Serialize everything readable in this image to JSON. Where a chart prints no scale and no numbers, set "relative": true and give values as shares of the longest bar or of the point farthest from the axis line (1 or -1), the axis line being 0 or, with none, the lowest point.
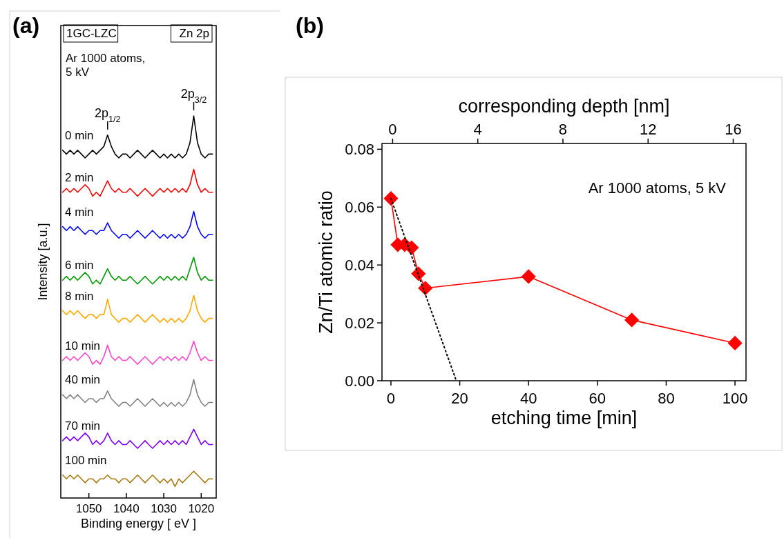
{
  "chart_data": [
    {
      "type": "line",
      "relative": true,
      "xlabel": "Binding energy [ eV ]",
      "ylabel": "Intensity [a.u.]",
      "tick_labels": "x",
      "xlim": [
        1057.5,
        1016
      ],
      "xticks": [
        1050,
        1040,
        1030,
        1020
      ],
      "x": [
        1057,
        1056,
        1055,
        1054,
        1053,
        1052,
        1051,
        1050,
        1049,
        1048,
        1047,
        1046,
        1045,
        1044,
        1043,
        1042,
        1041,
        1040,
        1039,
        1038,
        1037,
        1036,
        1035,
        1034,
        1033,
        1032,
        1031,
        1030,
        1029,
        1028,
        1027,
        1026,
        1025,
        1024,
        1023,
        1022,
        1021,
        1020,
        1019,
        1018,
        1017
      ],
      "annotations": [
        "(a)",
        "1GC-LZC",
        "Zn 2p",
        "Ar 1000 atoms, 5 kV",
        {
          "text": "2p$_{1/2}$",
          "x": 1045,
          "y": 0.95
        },
        {
          "text": "2p$_{3/2}$",
          "x": 1022,
          "y": 1
        }
      ],
      "series": [
        {
          "name": "0 min",
          "color": "#000000",
          "values": [
            0.91,
            0.9,
            0.91,
            0.9,
            0.91,
            0.9,
            0.89,
            0.9,
            0.91,
            0.9,
            0.91,
            0.92,
            0.95,
            0.92,
            0.9,
            0.89,
            0.9,
            0.9,
            0.89,
            0.9,
            0.91,
            0.9,
            0.89,
            0.9,
            0.91,
            0.9,
            0.89,
            0.9,
            0.89,
            0.9,
            0.89,
            0.9,
            0.89,
            0.9,
            0.93,
            1,
            0.93,
            0.9,
            0.89,
            0.9,
            0.9
          ]
        },
        {
          "name": "2 min",
          "color": "#ff0000",
          "values": [
            0.8,
            0.81,
            0.8,
            0.81,
            0.8,
            0.81,
            0.82,
            0.81,
            0.79,
            0.8,
            0.79,
            0.81,
            0.83,
            0.81,
            0.8,
            0.81,
            0.8,
            0.8,
            0.81,
            0.8,
            0.79,
            0.8,
            0.81,
            0.8,
            0.79,
            0.8,
            0.81,
            0.8,
            0.81,
            0.8,
            0.81,
            0.8,
            0.81,
            0.8,
            0.82,
            0.86,
            0.82,
            0.8,
            0.81,
            0.8,
            0.8
          ]
        },
        {
          "name": "4 min",
          "color": "#0000ff",
          "values": [
            0.71,
            0.7,
            0.71,
            0.7,
            0.71,
            0.7,
            0.69,
            0.7,
            0.7,
            0.69,
            0.7,
            0.7,
            0.72,
            0.7,
            0.69,
            0.68,
            0.69,
            0.69,
            0.68,
            0.69,
            0.7,
            0.69,
            0.68,
            0.69,
            0.7,
            0.69,
            0.68,
            0.69,
            0.68,
            0.69,
            0.68,
            0.69,
            0.68,
            0.69,
            0.71,
            0.75,
            0.71,
            0.69,
            0.68,
            0.69,
            0.69
          ]
        },
        {
          "name": "6 min",
          "color": "#009900",
          "values": [
            0.57,
            0.58,
            0.57,
            0.58,
            0.57,
            0.58,
            0.59,
            0.58,
            0.56,
            0.57,
            0.56,
            0.58,
            0.6,
            0.58,
            0.57,
            0.58,
            0.57,
            0.57,
            0.58,
            0.57,
            0.56,
            0.57,
            0.58,
            0.57,
            0.56,
            0.57,
            0.58,
            0.57,
            0.58,
            0.57,
            0.58,
            0.57,
            0.58,
            0.57,
            0.6,
            0.63,
            0.59,
            0.57,
            0.58,
            0.57,
            0.57
          ]
        },
        {
          "name": "8 min",
          "color": "#ffaa00",
          "values": [
            0.49,
            0.48,
            0.49,
            0.48,
            0.49,
            0.48,
            0.47,
            0.48,
            0.48,
            0.47,
            0.48,
            0.48,
            0.52,
            0.48,
            0.47,
            0.46,
            0.47,
            0.47,
            0.46,
            0.47,
            0.48,
            0.47,
            0.46,
            0.47,
            0.48,
            0.47,
            0.46,
            0.47,
            0.46,
            0.47,
            0.46,
            0.47,
            0.46,
            0.47,
            0.49,
            0.53,
            0.49,
            0.47,
            0.46,
            0.47,
            0.47
          ]
        },
        {
          "name": "10 min",
          "color": "#ff44cc",
          "values": [
            0.36,
            0.37,
            0.36,
            0.37,
            0.36,
            0.37,
            0.38,
            0.37,
            0.35,
            0.36,
            0.35,
            0.37,
            0.4,
            0.37,
            0.36,
            0.37,
            0.36,
            0.36,
            0.37,
            0.36,
            0.35,
            0.36,
            0.37,
            0.36,
            0.35,
            0.36,
            0.37,
            0.36,
            0.37,
            0.36,
            0.37,
            0.36,
            0.37,
            0.36,
            0.38,
            0.41,
            0.38,
            0.36,
            0.37,
            0.36,
            0.36
          ]
        },
        {
          "name": "40 min",
          "color": "#808080",
          "values": [
            0.27,
            0.26,
            0.27,
            0.26,
            0.27,
            0.26,
            0.25,
            0.26,
            0.26,
            0.25,
            0.26,
            0.26,
            0.28,
            0.26,
            0.25,
            0.24,
            0.25,
            0.25,
            0.24,
            0.25,
            0.26,
            0.25,
            0.24,
            0.25,
            0.26,
            0.25,
            0.24,
            0.25,
            0.24,
            0.25,
            0.24,
            0.25,
            0.24,
            0.25,
            0.27,
            0.31,
            0.27,
            0.25,
            0.24,
            0.25,
            0.25
          ]
        },
        {
          "name": "70 min",
          "color": "#7f00ff",
          "values": [
            0.15,
            0.16,
            0.15,
            0.16,
            0.15,
            0.16,
            0.17,
            0.16,
            0.14,
            0.15,
            0.14,
            0.15,
            0.17,
            0.15,
            0.14,
            0.15,
            0.14,
            0.14,
            0.15,
            0.14,
            0.13,
            0.14,
            0.15,
            0.14,
            0.13,
            0.14,
            0.15,
            0.14,
            0.15,
            0.14,
            0.15,
            0.14,
            0.15,
            0.14,
            0.16,
            0.18,
            0.16,
            0.14,
            0.15,
            0.14,
            0.14
          ]
        },
        {
          "name": "100 min",
          "color": "#a87a10",
          "values": [
            0.06,
            0.05,
            0.06,
            0.05,
            0.06,
            0.05,
            0.04,
            0.05,
            0.05,
            0.04,
            0.05,
            0.05,
            0.06,
            0.05,
            0.05,
            0.04,
            0.05,
            0.05,
            0.04,
            0.05,
            0.06,
            0.05,
            0.04,
            0.05,
            0.06,
            0.05,
            0.04,
            0.05,
            0.04,
            0.05,
            0.03,
            0.05,
            0.04,
            0.05,
            0.06,
            0.07,
            0.06,
            0.05,
            0.04,
            0.05,
            0.05
          ]
        }
      ]
    },
    {
      "type": "line",
      "xlabel": "etching time [min]",
      "ylabel": "Zn/Ti atomic ratio",
      "x2label": "corresponding depth [nm]",
      "xlim": [
        -2.6,
        103.2
      ],
      "xticks": [
        0,
        20,
        40,
        60,
        80,
        100
      ],
      "ylim": [
        0,
        0.082
      ],
      "yticks": [
        {
          "value": 0,
          "label": "0.00"
        },
        {
          "value": 0.02,
          "label": "0.02"
        },
        {
          "value": 0.04,
          "label": "0.04"
        },
        {
          "value": 0.06,
          "label": "0.06"
        },
        {
          "value": 0.08,
          "label": "0.08"
        }
      ],
      "x2lim": [
        -0.5,
        16.6
      ],
      "x2ticks": [
        0,
        4,
        8,
        12,
        16
      ],
      "annotations": [
        "(b)",
        "Ar 1000 atoms, 5 kV"
      ],
      "series": [
        {
          "color": "#ff0000",
          "marker": "diamond",
          "x": [
            0,
            2,
            4,
            6,
            8,
            10,
            40,
            70,
            100
          ],
          "values": [
            0.063,
            0.047,
            0.047,
            0.046,
            0.037,
            0.032,
            0.036,
            0.021,
            0.013
          ]
        },
        {
          "color": "#000000",
          "marker": "none",
          "line_style": "dotted",
          "x": [
            0,
            19
          ],
          "values": [
            0.063,
            0
          ]
        }
      ]
    }
  ]
}
